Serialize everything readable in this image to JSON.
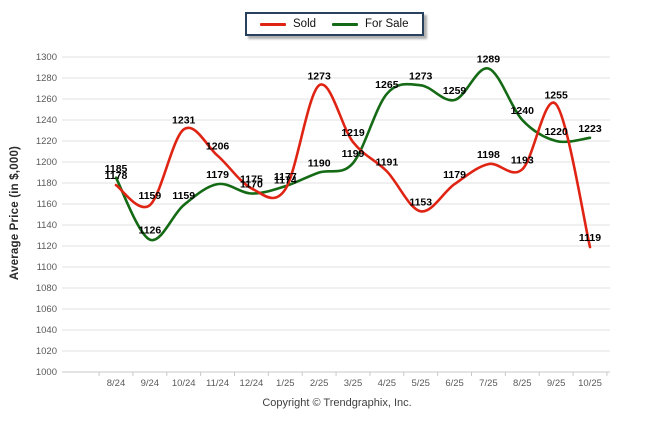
{
  "footer": {
    "copyright": "Copyright © Trendgraphix, Inc."
  },
  "chart_data": {
    "type": "line",
    "title": "",
    "xlabel": "",
    "ylabel": "Average Price (in $,000)",
    "categories": [
      "8/24",
      "9/24",
      "10/24",
      "11/24",
      "12/24",
      "1/25",
      "2/25",
      "3/25",
      "4/25",
      "5/25",
      "6/25",
      "7/25",
      "8/25",
      "9/25",
      "10/25"
    ],
    "series": [
      {
        "name": "Sold",
        "color": "#e02414",
        "values": [
          1178,
          1159,
          1231,
          1206,
          1175,
          1174,
          1273,
          1219,
          1191,
          1153,
          1179,
          1198,
          1193,
          1255,
          1119
        ]
      },
      {
        "name": "For Sale",
        "color": "#156a15",
        "values": [
          1185,
          1126,
          1159,
          1179,
          1170,
          1177,
          1190,
          1199,
          1265,
          1273,
          1259,
          1289,
          1240,
          1220,
          1223
        ]
      }
    ],
    "ylim": [
      1000,
      1300
    ],
    "ytick_step": 20,
    "grid": true,
    "legend_position": "top-center",
    "point_labels": true,
    "colors": {
      "grid": "#e2e2e2",
      "axis": "#c8c8c8",
      "tick_text": "#5a5a5a",
      "label_text": "#000000"
    }
  }
}
